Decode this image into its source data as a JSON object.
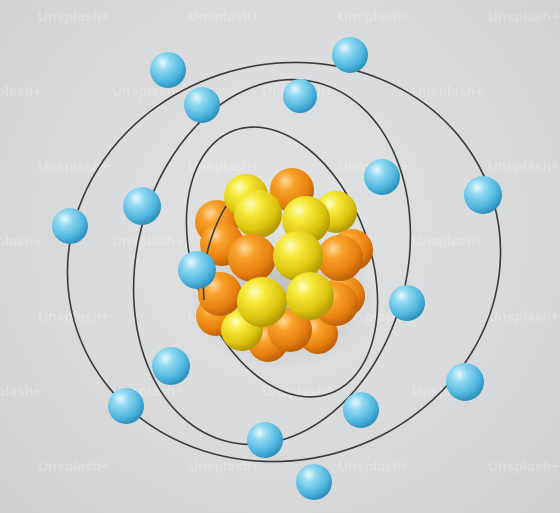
{
  "image": {
    "subject": "atom-model",
    "watermark_text": "Unsplash+",
    "colors": {
      "background": "#d9dadb",
      "electron": "#6fcbe8",
      "proton_yellow": "#f2e21e",
      "neutron_orange": "#f29418",
      "orbit": "#3a3a3a"
    }
  }
}
